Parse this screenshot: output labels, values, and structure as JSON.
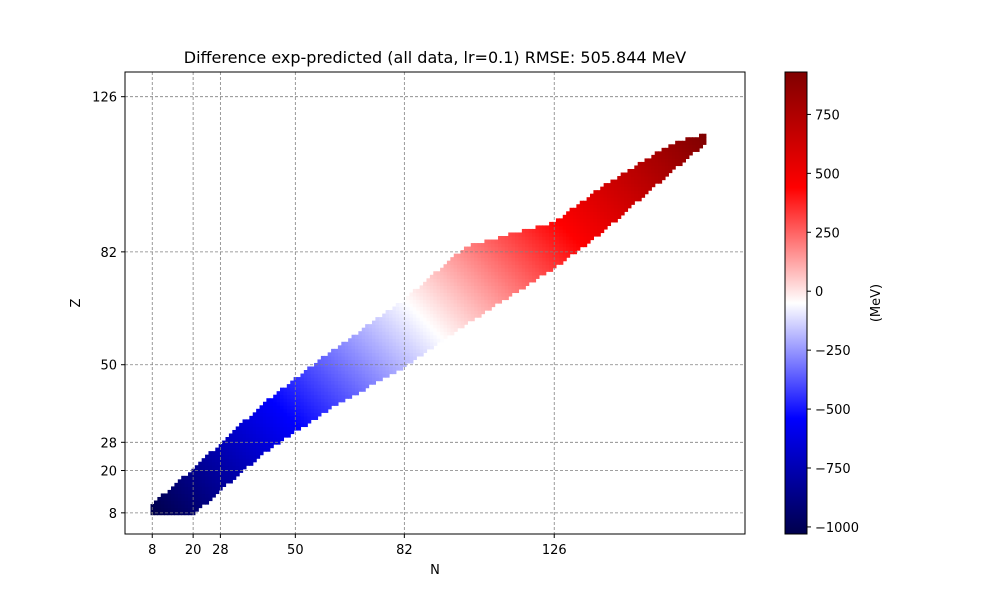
{
  "chart_data": {
    "type": "heatmap",
    "title": "Difference exp-predicted (all data, lr=0.1)  RMSE: 505.844 MeV",
    "xlabel": "N",
    "ylabel": "Z",
    "xlim": [
      0,
      182
    ],
    "ylim": [
      2,
      133
    ],
    "x_ticks": [
      8,
      20,
      28,
      50,
      82,
      126
    ],
    "y_ticks": [
      8,
      20,
      28,
      50,
      82,
      126
    ],
    "grid": true,
    "colorbar": {
      "label": "(MeV)",
      "range": [
        -1030,
        930
      ],
      "ticks": [
        -1000,
        -750,
        -500,
        -250,
        0,
        250,
        500,
        750
      ],
      "tick_labels": [
        "−1000",
        "−750",
        "−500",
        "−250",
        "0",
        "250",
        "500",
        "750"
      ],
      "colormap": "seismic",
      "colors": [
        "#00004c",
        "#0000ff",
        "#ffffff",
        "#ff0000",
        "#800000"
      ]
    },
    "region": {
      "description_free": true,
      "lower_boundary": [
        [
          8,
          8
        ],
        [
          20,
          8
        ],
        [
          40,
          25
        ],
        [
          60,
          38
        ],
        [
          82,
          50
        ],
        [
          100,
          62
        ],
        [
          126,
          78
        ],
        [
          140,
          88
        ],
        [
          160,
          105
        ],
        [
          170,
          113
        ]
      ],
      "upper_boundary": [
        [
          8,
          10
        ],
        [
          20,
          20
        ],
        [
          40,
          38
        ],
        [
          60,
          53
        ],
        [
          82,
          68
        ],
        [
          100,
          83
        ],
        [
          126,
          90
        ],
        [
          140,
          100
        ],
        [
          160,
          112
        ],
        [
          170,
          115
        ]
      ],
      "value_model": {
        "d_at_n0": -1030,
        "d_at_n170": 930,
        "value_mode": "linear_in_N_plus_Z"
      }
    }
  }
}
